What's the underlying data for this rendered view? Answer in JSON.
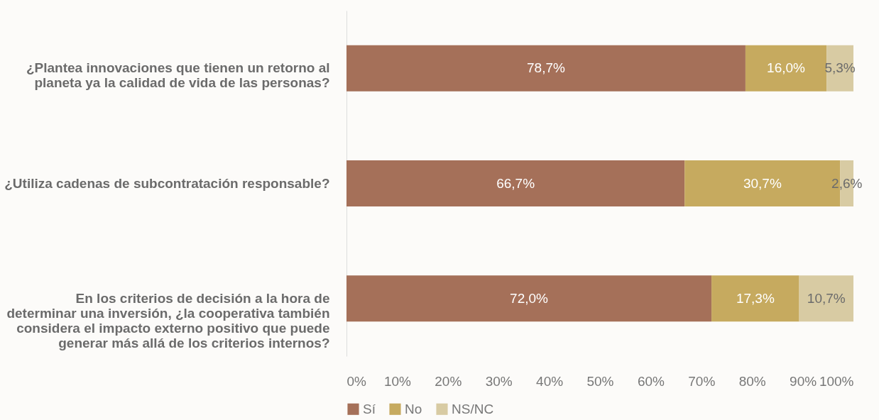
{
  "chart_data": {
    "type": "bar",
    "orientation": "horizontal",
    "stacked": true,
    "categories": [
      "¿Plantea innovaciones que tienen un retorno al planeta ya la calidad de vida de las personas?",
      "¿Utiliza cadenas de subcontratación responsable?",
      "En los criterios de decisión a la hora de determinar una inversión, ¿la cooperativa también considera el impacto externo positivo que puede generar más allá de los criterios internos?"
    ],
    "series": [
      {
        "name": "Sí",
        "color": "#a57059",
        "values": [
          78.7,
          66.7,
          72.0
        ],
        "value_labels": [
          "78,7%",
          "66,7%",
          "72,0%"
        ]
      },
      {
        "name": "No",
        "color": "#c6aa5f",
        "values": [
          16.0,
          30.7,
          17.3
        ],
        "value_labels": [
          "16,0%",
          "30,7%",
          "17,3%"
        ]
      },
      {
        "name": "NS/NC",
        "color": "#d8cba3",
        "values": [
          5.3,
          2.6,
          10.7
        ],
        "value_labels": [
          "5,3%",
          "2,6%",
          "10,7%"
        ]
      }
    ],
    "xlim": [
      0,
      100
    ],
    "xticks": [
      {
        "value": 0,
        "label": "0%"
      },
      {
        "value": 10,
        "label": "10%"
      },
      {
        "value": 20,
        "label": "20%"
      },
      {
        "value": 30,
        "label": "30%"
      },
      {
        "value": 40,
        "label": "40%"
      },
      {
        "value": 50,
        "label": "50%"
      },
      {
        "value": 60,
        "label": "60%"
      },
      {
        "value": 70,
        "label": "70%"
      },
      {
        "value": 80,
        "label": "80%"
      },
      {
        "value": 90,
        "label": "90%"
      },
      {
        "value": 100,
        "label": "100%"
      }
    ],
    "grid": false,
    "legend": "bottom"
  }
}
